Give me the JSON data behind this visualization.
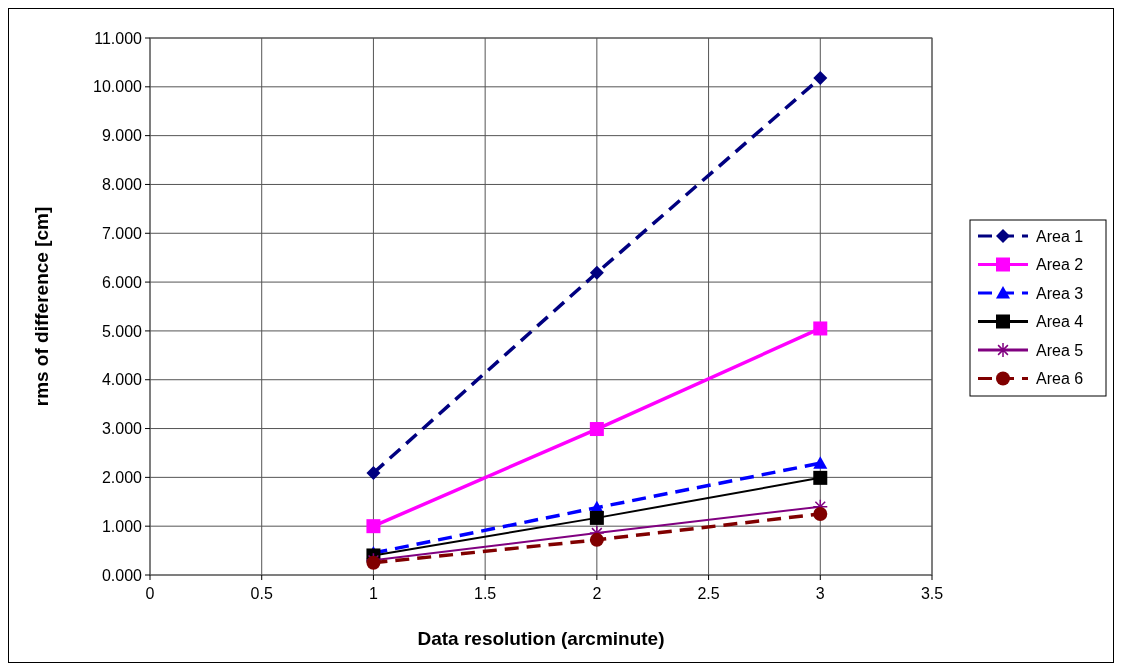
{
  "chart_data": {
    "type": "line",
    "xlabel": "Data resolution (arcminute)",
    "ylabel": "rms of difference [cm]",
    "x": [
      1,
      2,
      3
    ],
    "series": [
      {
        "name": "Area 1",
        "color": "#000080",
        "values": [
          2.09,
          6.19,
          10.18
        ],
        "marker": "diamond",
        "line_style": "dashed"
      },
      {
        "name": "Area 2",
        "color": "#ff00ff",
        "values": [
          1.0,
          2.99,
          5.05
        ],
        "marker": "square",
        "line_style": "solid"
      },
      {
        "name": "Area 3",
        "color": "#0000ff",
        "values": [
          0.45,
          1.38,
          2.29
        ],
        "marker": "triangle",
        "line_style": "dashed"
      },
      {
        "name": "Area 4",
        "color": "#000000",
        "values": [
          0.4,
          1.17,
          1.99
        ],
        "marker": "square",
        "line_style": "solid"
      },
      {
        "name": "Area 5",
        "color": "#800080",
        "values": [
          0.3,
          0.86,
          1.4
        ],
        "marker": "cross",
        "line_style": "solid"
      },
      {
        "name": "Area 6",
        "color": "#800000",
        "values": [
          0.25,
          0.72,
          1.25
        ],
        "marker": "circle",
        "line_style": "dashed"
      }
    ],
    "xlim": [
      0,
      3.5
    ],
    "xticks": [
      0,
      0.5,
      1,
      1.5,
      2,
      2.5,
      3,
      3.5
    ],
    "ylim": [
      0,
      11
    ],
    "yticks": [
      {
        "value": 0,
        "label": "0.000"
      },
      {
        "value": 1,
        "label": "1.000"
      },
      {
        "value": 2,
        "label": "2.000"
      },
      {
        "value": 3,
        "label": "3.000"
      },
      {
        "value": 4,
        "label": "4.000"
      },
      {
        "value": 5,
        "label": "5.000"
      },
      {
        "value": 6,
        "label": "6.000"
      },
      {
        "value": 7,
        "label": "7.000"
      },
      {
        "value": 8,
        "label": "8.000"
      },
      {
        "value": 9,
        "label": "9.000"
      },
      {
        "value": 10,
        "label": "10.000"
      },
      {
        "value": 11,
        "label": "11.000"
      }
    ],
    "grid": true,
    "legend": "right"
  }
}
